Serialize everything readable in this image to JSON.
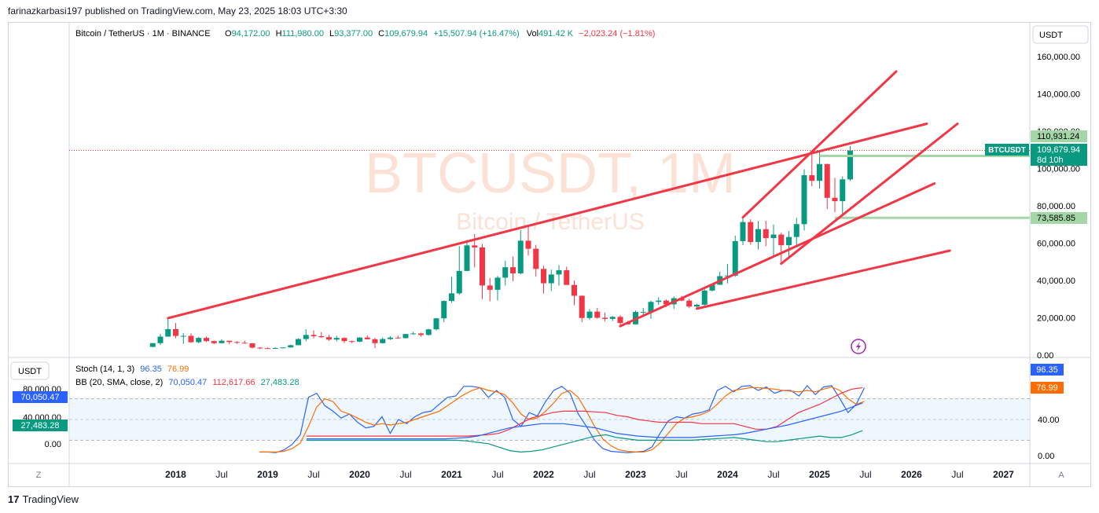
{
  "publisher_line": "farinazkarbasi197 published on TradingView.com, May 23, 2025 18:03 UTC+3:30",
  "footer_brand": "TradingView",
  "footer_mark": "17",
  "symbol_header": {
    "name": "Bitcoin / TetherUS · 1M · BINANCE",
    "o_label": "O",
    "o_value": "94,172.00",
    "h_label": "H",
    "h_value": "111,980.00",
    "l_label": "L",
    "l_value": "93,377.00",
    "c_label": "C",
    "c_value": "109,679.94",
    "change": "+15,507.94 (+16.47%)",
    "vol_label": "Vol",
    "vol_value": "491.42 K",
    "vol_change": "−2,023.24 (−1.81%)"
  },
  "watermark": {
    "line1": "BTCUSDT, 1M",
    "line2": "Bitcoin / TetherUS"
  },
  "currency_main": "USDT",
  "currency_ind": "USDT",
  "price_axis": {
    "ticks": [
      "160,000.00",
      "140,000.00",
      "120,000.00",
      "100,000.00",
      "80,000.00",
      "60,000.00",
      "40,000.00",
      "20,000.00",
      "0.00"
    ]
  },
  "price_labels": {
    "level_high": "110,931.24",
    "ticker_name": "BTCUSDT",
    "last": "109,679.94",
    "countdown": "8d 10h",
    "level_low": "73,585.85"
  },
  "indicators": {
    "stoch_label": "Stoch (14, 1, 3)",
    "stoch_k": "96.35",
    "stoch_d": "76.99",
    "bb_label": "BB (20, SMA, close, 2)",
    "bb_mid": "70,050.47",
    "bb_upper": "112,617.66",
    "bb_lower": "27,483.28"
  },
  "ind_axis": {
    "ticks": [
      "80,000.00",
      "40,000.00",
      "0.00"
    ],
    "right_ticks": [
      "40.00",
      "0.00"
    ]
  },
  "ind_labels": {
    "bb_mid": "70,050.47",
    "bb_lower": "27,483.28",
    "stoch_k": "96.35",
    "stoch_d": "76.99"
  },
  "time_axis": [
    "2018",
    "Jul",
    "2019",
    "Jul",
    "2020",
    "Jul",
    "2021",
    "Jul",
    "2022",
    "Jul",
    "2023",
    "Jul",
    "2024",
    "Jul",
    "2025",
    "Jul",
    "2026",
    "Jul",
    "2027"
  ],
  "corner_left": "Z",
  "corner_right": "A",
  "colors": {
    "up": "#089981",
    "down": "#f23645",
    "trend": "#f23645",
    "level": "#a5d6a7",
    "blue": "#2962ff",
    "orange": "#ff6d00",
    "teal": "#089981",
    "bbfill": "#e3f2fd"
  },
  "chart_data": {
    "type": "candlestick",
    "title": "Bitcoin / TetherUS · 1M · BINANCE",
    "ylim": [
      0,
      170000
    ],
    "candles": [
      {
        "t": "2017-10",
        "o": 4400,
        "h": 6500,
        "l": 4100,
        "c": 6400
      },
      {
        "t": "2017-11",
        "o": 6400,
        "h": 11300,
        "l": 5500,
        "c": 9900
      },
      {
        "t": "2017-12",
        "o": 9900,
        "h": 19800,
        "l": 10900,
        "c": 13900
      },
      {
        "t": "2018-01",
        "o": 13900,
        "h": 17200,
        "l": 9000,
        "c": 10300
      },
      {
        "t": "2018-02",
        "o": 10300,
        "h": 11800,
        "l": 6000,
        "c": 10300
      },
      {
        "t": "2018-03",
        "o": 10300,
        "h": 11700,
        "l": 6600,
        "c": 6900
      },
      {
        "t": "2018-04",
        "o": 6900,
        "h": 9800,
        "l": 6400,
        "c": 9200
      },
      {
        "t": "2018-05",
        "o": 9200,
        "h": 10000,
        "l": 7000,
        "c": 7500
      },
      {
        "t": "2018-06",
        "o": 7500,
        "h": 7800,
        "l": 5800,
        "c": 6400
      },
      {
        "t": "2018-07",
        "o": 6400,
        "h": 8500,
        "l": 6100,
        "c": 7700
      },
      {
        "t": "2018-08",
        "o": 7700,
        "h": 7800,
        "l": 5900,
        "c": 7000
      },
      {
        "t": "2018-09",
        "o": 7000,
        "h": 7400,
        "l": 6100,
        "c": 6600
      },
      {
        "t": "2018-10",
        "o": 6600,
        "h": 7700,
        "l": 6200,
        "c": 6300
      },
      {
        "t": "2018-11",
        "o": 6300,
        "h": 6500,
        "l": 3600,
        "c": 4000
      },
      {
        "t": "2018-12",
        "o": 4000,
        "h": 4300,
        "l": 3200,
        "c": 3700
      },
      {
        "t": "2019-01",
        "o": 3700,
        "h": 4100,
        "l": 3300,
        "c": 3400
      },
      {
        "t": "2019-02",
        "o": 3400,
        "h": 4200,
        "l": 3300,
        "c": 3800
      },
      {
        "t": "2019-03",
        "o": 3800,
        "h": 4100,
        "l": 3600,
        "c": 4100
      },
      {
        "t": "2019-04",
        "o": 4100,
        "h": 5600,
        "l": 4000,
        "c": 5300
      },
      {
        "t": "2019-05",
        "o": 5300,
        "h": 9000,
        "l": 5300,
        "c": 8600
      },
      {
        "t": "2019-06",
        "o": 8600,
        "h": 13900,
        "l": 7400,
        "c": 10800
      },
      {
        "t": "2019-07",
        "o": 10800,
        "h": 13200,
        "l": 9000,
        "c": 10100
      },
      {
        "t": "2019-08",
        "o": 10100,
        "h": 12300,
        "l": 9300,
        "c": 9600
      },
      {
        "t": "2019-09",
        "o": 9600,
        "h": 10900,
        "l": 7700,
        "c": 8300
      },
      {
        "t": "2019-10",
        "o": 8300,
        "h": 10400,
        "l": 7300,
        "c": 9200
      },
      {
        "t": "2019-11",
        "o": 9200,
        "h": 9500,
        "l": 6500,
        "c": 7500
      },
      {
        "t": "2019-12",
        "o": 7500,
        "h": 7800,
        "l": 6400,
        "c": 7200
      },
      {
        "t": "2020-01",
        "o": 7200,
        "h": 9600,
        "l": 6900,
        "c": 9400
      },
      {
        "t": "2020-02",
        "o": 9400,
        "h": 10500,
        "l": 8400,
        "c": 8500
      },
      {
        "t": "2020-03",
        "o": 8500,
        "h": 9200,
        "l": 3800,
        "c": 6400
      },
      {
        "t": "2020-04",
        "o": 6400,
        "h": 9500,
        "l": 6200,
        "c": 8600
      },
      {
        "t": "2020-05",
        "o": 8600,
        "h": 10100,
        "l": 8100,
        "c": 9400
      },
      {
        "t": "2020-06",
        "o": 9400,
        "h": 10400,
        "l": 8900,
        "c": 9100
      },
      {
        "t": "2020-07",
        "o": 9100,
        "h": 11400,
        "l": 8900,
        "c": 11300
      },
      {
        "t": "2020-08",
        "o": 11300,
        "h": 12500,
        "l": 11000,
        "c": 11600
      },
      {
        "t": "2020-09",
        "o": 11600,
        "h": 12000,
        "l": 9900,
        "c": 10800
      },
      {
        "t": "2020-10",
        "o": 10800,
        "h": 14100,
        "l": 10400,
        "c": 13800
      },
      {
        "t": "2020-11",
        "o": 13800,
        "h": 19900,
        "l": 13200,
        "c": 19700
      },
      {
        "t": "2020-12",
        "o": 19700,
        "h": 29300,
        "l": 17600,
        "c": 29000
      },
      {
        "t": "2021-01",
        "o": 29000,
        "h": 41900,
        "l": 28100,
        "c": 33100
      },
      {
        "t": "2021-02",
        "o": 33100,
        "h": 58400,
        "l": 32300,
        "c": 45100
      },
      {
        "t": "2021-03",
        "o": 45100,
        "h": 61800,
        "l": 45000,
        "c": 58800
      },
      {
        "t": "2021-04",
        "o": 58800,
        "h": 64900,
        "l": 47000,
        "c": 57700
      },
      {
        "t": "2021-05",
        "o": 57700,
        "h": 59500,
        "l": 30000,
        "c": 37300
      },
      {
        "t": "2021-06",
        "o": 37300,
        "h": 41300,
        "l": 28800,
        "c": 35000
      },
      {
        "t": "2021-07",
        "o": 35000,
        "h": 42400,
        "l": 29300,
        "c": 41500
      },
      {
        "t": "2021-08",
        "o": 41500,
        "h": 50500,
        "l": 37300,
        "c": 47100
      },
      {
        "t": "2021-09",
        "o": 47100,
        "h": 52900,
        "l": 39600,
        "c": 43800
      },
      {
        "t": "2021-10",
        "o": 43800,
        "h": 67000,
        "l": 43300,
        "c": 61300
      },
      {
        "t": "2021-11",
        "o": 61300,
        "h": 69000,
        "l": 53300,
        "c": 57000
      },
      {
        "t": "2021-12",
        "o": 57000,
        "h": 59100,
        "l": 42000,
        "c": 46200
      },
      {
        "t": "2022-01",
        "o": 46200,
        "h": 47900,
        "l": 33000,
        "c": 38500
      },
      {
        "t": "2022-02",
        "o": 38500,
        "h": 45800,
        "l": 34300,
        "c": 43200
      },
      {
        "t": "2022-03",
        "o": 43200,
        "h": 48200,
        "l": 37200,
        "c": 45500
      },
      {
        "t": "2022-04",
        "o": 45500,
        "h": 47400,
        "l": 37600,
        "c": 37600
      },
      {
        "t": "2022-05",
        "o": 37600,
        "h": 40000,
        "l": 26700,
        "c": 31800
      },
      {
        "t": "2022-06",
        "o": 31800,
        "h": 31900,
        "l": 17600,
        "c": 19900
      },
      {
        "t": "2022-07",
        "o": 19900,
        "h": 24700,
        "l": 18800,
        "c": 23300
      },
      {
        "t": "2022-08",
        "o": 23300,
        "h": 25200,
        "l": 19500,
        "c": 20000
      },
      {
        "t": "2022-09",
        "o": 20000,
        "h": 22800,
        "l": 18100,
        "c": 19400
      },
      {
        "t": "2022-10",
        "o": 19400,
        "h": 21000,
        "l": 18200,
        "c": 20500
      },
      {
        "t": "2022-11",
        "o": 20500,
        "h": 21400,
        "l": 15500,
        "c": 17200
      },
      {
        "t": "2022-12",
        "o": 17200,
        "h": 18400,
        "l": 16300,
        "c": 16500
      },
      {
        "t": "2023-01",
        "o": 16500,
        "h": 23900,
        "l": 16500,
        "c": 23100
      },
      {
        "t": "2023-02",
        "o": 23100,
        "h": 25200,
        "l": 21400,
        "c": 23100
      },
      {
        "t": "2023-03",
        "o": 23100,
        "h": 29200,
        "l": 19500,
        "c": 28500
      },
      {
        "t": "2023-04",
        "o": 28500,
        "h": 31000,
        "l": 26900,
        "c": 29200
      },
      {
        "t": "2023-05",
        "o": 29200,
        "h": 29800,
        "l": 25800,
        "c": 27200
      },
      {
        "t": "2023-06",
        "o": 27200,
        "h": 31400,
        "l": 24800,
        "c": 30500
      },
      {
        "t": "2023-07",
        "o": 30500,
        "h": 31800,
        "l": 28900,
        "c": 29200
      },
      {
        "t": "2023-08",
        "o": 29200,
        "h": 30200,
        "l": 25100,
        "c": 26000
      },
      {
        "t": "2023-09",
        "o": 26000,
        "h": 27500,
        "l": 24900,
        "c": 27000
      },
      {
        "t": "2023-10",
        "o": 27000,
        "h": 35200,
        "l": 26500,
        "c": 34600
      },
      {
        "t": "2023-11",
        "o": 34600,
        "h": 38400,
        "l": 34100,
        "c": 37700
      },
      {
        "t": "2023-12",
        "o": 37700,
        "h": 44700,
        "l": 37600,
        "c": 42300
      },
      {
        "t": "2024-01",
        "o": 42300,
        "h": 48900,
        "l": 38500,
        "c": 42600
      },
      {
        "t": "2024-02",
        "o": 42600,
        "h": 64000,
        "l": 41900,
        "c": 61100
      },
      {
        "t": "2024-03",
        "o": 61100,
        "h": 73800,
        "l": 59000,
        "c": 71300
      },
      {
        "t": "2024-04",
        "o": 71300,
        "h": 72800,
        "l": 59200,
        "c": 60600
      },
      {
        "t": "2024-05",
        "o": 60600,
        "h": 71900,
        "l": 56600,
        "c": 67500
      },
      {
        "t": "2024-06",
        "o": 67500,
        "h": 72000,
        "l": 58400,
        "c": 62700
      },
      {
        "t": "2024-07",
        "o": 62700,
        "h": 70000,
        "l": 53500,
        "c": 64600
      },
      {
        "t": "2024-08",
        "o": 64600,
        "h": 65600,
        "l": 49000,
        "c": 58900
      },
      {
        "t": "2024-09",
        "o": 58900,
        "h": 66500,
        "l": 52500,
        "c": 63300
      },
      {
        "t": "2024-10",
        "o": 63300,
        "h": 73600,
        "l": 58900,
        "c": 70200
      },
      {
        "t": "2024-11",
        "o": 70200,
        "h": 99600,
        "l": 66800,
        "c": 96400
      },
      {
        "t": "2024-12",
        "o": 96400,
        "h": 108300,
        "l": 90500,
        "c": 93400
      },
      {
        "t": "2025-01",
        "o": 93400,
        "h": 109600,
        "l": 89200,
        "c": 102400
      },
      {
        "t": "2025-02",
        "o": 102400,
        "h": 102500,
        "l": 78200,
        "c": 84300
      },
      {
        "t": "2025-03",
        "o": 84300,
        "h": 95000,
        "l": 76600,
        "c": 82500
      },
      {
        "t": "2025-04",
        "o": 82500,
        "h": 95800,
        "l": 74500,
        "c": 94200
      },
      {
        "t": "2025-05",
        "o": 94172,
        "h": 111980,
        "l": 93377,
        "c": 109680
      }
    ],
    "levels": [
      110931.24,
      73585.85
    ],
    "stoch": {
      "k": 96.35,
      "d": 76.99
    },
    "bb": {
      "mid": 70050.47,
      "upper": 112617.66,
      "lower": 27483.28
    }
  }
}
